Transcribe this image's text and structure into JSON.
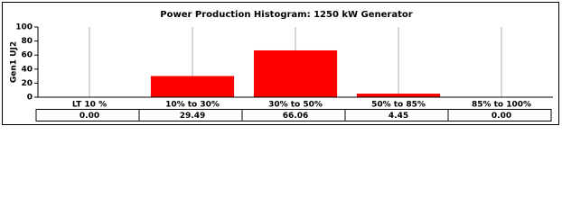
{
  "chart_data": {
    "type": "bar",
    "title": "Power Production Histogram: 1250 kW Generator",
    "y_label": "Gen1 UJ2",
    "categories": [
      "LT 10 %",
      "10% to 30%",
      "30% to 50%",
      "50% to 85%",
      "85% to 100%"
    ],
    "values": [
      0,
      29.49,
      66.06,
      4.45,
      0
    ],
    "value_labels": [
      "0.00",
      "29.49",
      "66.06",
      "4.45",
      "0.00"
    ],
    "color": "#ff0000",
    "ylim": [
      0,
      100
    ],
    "yticks": [
      0,
      20,
      40,
      60,
      80,
      100
    ],
    "grid": true
  }
}
